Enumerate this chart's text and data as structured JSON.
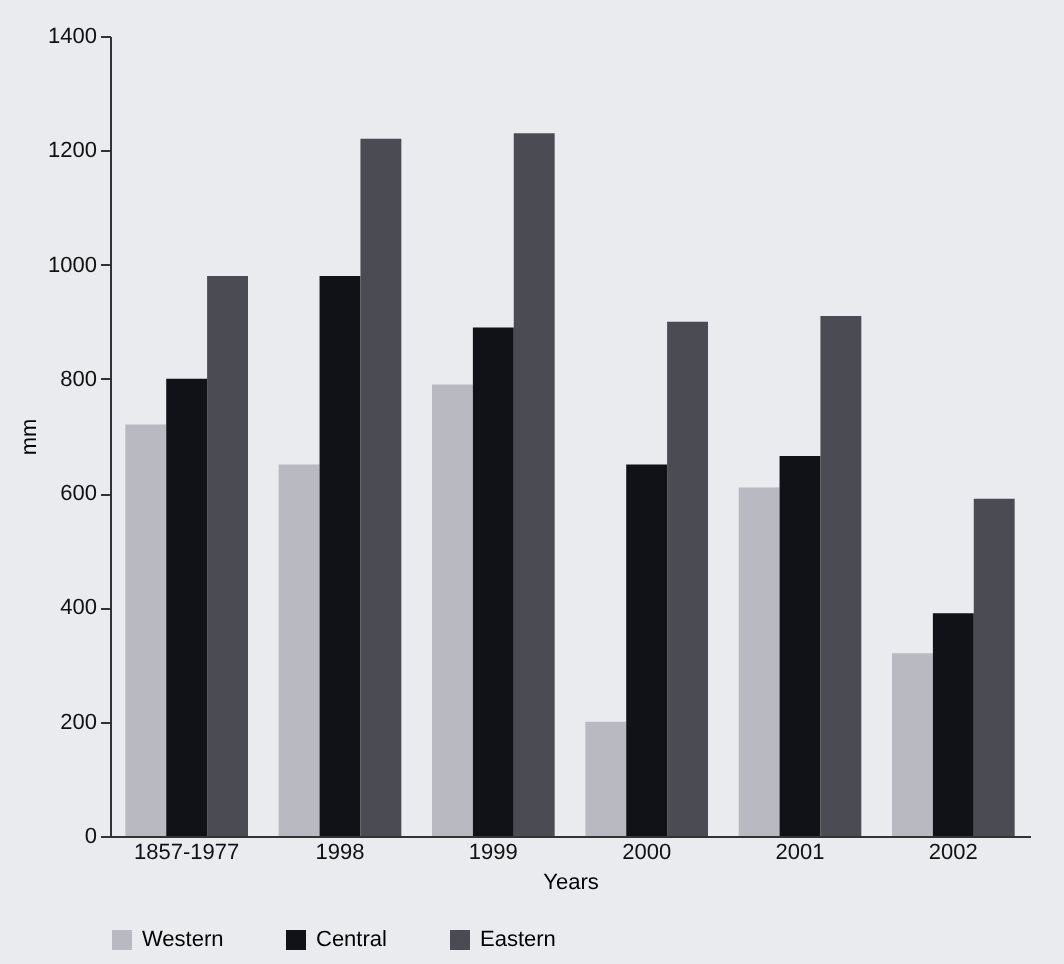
{
  "chart_data": {
    "type": "bar",
    "xlabel": "Years",
    "ylabel": "mm",
    "categories": [
      "1857-1977",
      "1998",
      "1999",
      "2000",
      "2001",
      "2002"
    ],
    "series": [
      {
        "name": "Western",
        "color": "#b9b9c2",
        "values": [
          720,
          650,
          790,
          200,
          610,
          320
        ]
      },
      {
        "name": "Central",
        "color": "#111118",
        "values": [
          800,
          980,
          890,
          650,
          665,
          390
        ]
      },
      {
        "name": "Eastern",
        "color": "#4b4b53",
        "values": [
          980,
          1220,
          1230,
          900,
          910,
          590
        ]
      }
    ],
    "ylim": [
      0,
      1400
    ],
    "yticks": [
      0,
      200,
      400,
      600,
      800,
      1000,
      1200,
      1400
    ],
    "grid": false,
    "legend": "bottom"
  }
}
